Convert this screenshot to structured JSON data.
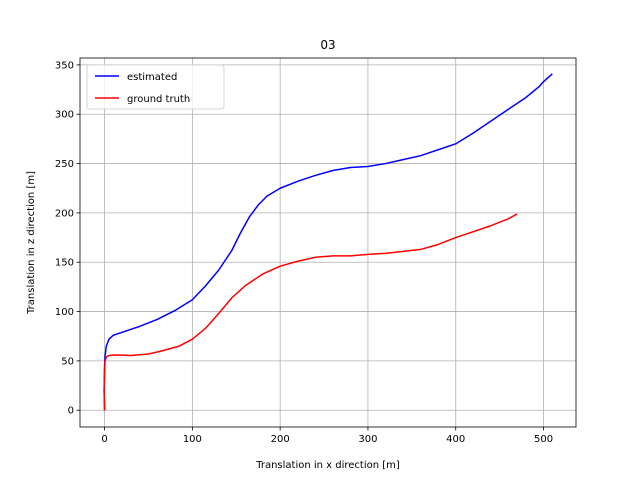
{
  "chart_data": {
    "type": "line",
    "title": "03",
    "xlabel": "Translation in x direction [m]",
    "ylabel": "Translation in z direction [m]",
    "xlim": [
      -28,
      537
    ],
    "ylim": [
      -17,
      357
    ],
    "xticks": [
      0,
      100,
      200,
      300,
      400,
      500
    ],
    "yticks": [
      0,
      50,
      100,
      150,
      200,
      250,
      300,
      350
    ],
    "grid": true,
    "legend_position": "top-left",
    "series": [
      {
        "name": "estimated",
        "color": "#0000ff",
        "points": [
          [
            0,
            0
          ],
          [
            -0.5,
            20
          ],
          [
            0,
            45
          ],
          [
            0.5,
            55
          ],
          [
            2,
            65
          ],
          [
            5,
            72
          ],
          [
            10,
            76
          ],
          [
            20,
            79
          ],
          [
            40,
            85
          ],
          [
            60,
            92
          ],
          [
            80,
            101
          ],
          [
            100,
            112
          ],
          [
            115,
            126
          ],
          [
            130,
            142
          ],
          [
            145,
            162
          ],
          [
            155,
            180
          ],
          [
            165,
            196
          ],
          [
            175,
            208
          ],
          [
            185,
            217
          ],
          [
            200,
            225
          ],
          [
            220,
            232
          ],
          [
            240,
            238
          ],
          [
            260,
            243
          ],
          [
            280,
            246
          ],
          [
            300,
            247
          ],
          [
            320,
            250
          ],
          [
            340,
            254
          ],
          [
            360,
            258
          ],
          [
            380,
            264
          ],
          [
            400,
            270
          ],
          [
            420,
            281
          ],
          [
            440,
            293
          ],
          [
            460,
            305
          ],
          [
            480,
            317
          ],
          [
            495,
            328
          ],
          [
            500,
            333
          ],
          [
            510,
            341
          ]
        ]
      },
      {
        "name": "ground truth",
        "color": "#ff0000",
        "points": [
          [
            0,
            0
          ],
          [
            -0.5,
            20
          ],
          [
            0,
            40
          ],
          [
            0.5,
            50
          ],
          [
            2,
            54
          ],
          [
            5,
            55.5
          ],
          [
            10,
            56
          ],
          [
            20,
            55.8
          ],
          [
            30,
            55.5
          ],
          [
            50,
            57
          ],
          [
            65,
            60
          ],
          [
            85,
            65
          ],
          [
            100,
            72
          ],
          [
            115,
            83
          ],
          [
            130,
            98
          ],
          [
            145,
            114
          ],
          [
            160,
            126
          ],
          [
            180,
            138
          ],
          [
            200,
            146
          ],
          [
            220,
            151
          ],
          [
            240,
            155
          ],
          [
            260,
            156.5
          ],
          [
            280,
            156.5
          ],
          [
            300,
            158
          ],
          [
            320,
            159
          ],
          [
            340,
            161
          ],
          [
            360,
            163
          ],
          [
            380,
            168
          ],
          [
            400,
            175
          ],
          [
            420,
            181
          ],
          [
            440,
            187
          ],
          [
            460,
            194
          ],
          [
            470,
            199
          ]
        ]
      }
    ]
  }
}
